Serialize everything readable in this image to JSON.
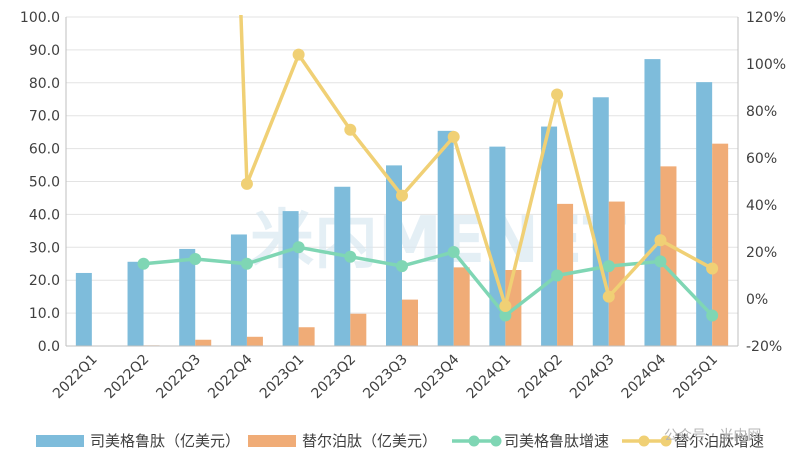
{
  "chart_data": {
    "type": "bar",
    "categories": [
      "2022Q1",
      "2022Q2",
      "2022Q3",
      "2022Q4",
      "2023Q1",
      "2023Q2",
      "2023Q3",
      "2023Q4",
      "2024Q1",
      "2024Q2",
      "2024Q3",
      "2024Q4",
      "2025Q1"
    ],
    "series": [
      {
        "name": "司美格鲁肽（亿美元）",
        "kind": "bar",
        "axis": "left",
        "color": "#7ebcdb",
        "values": [
          22.2,
          25.6,
          29.5,
          33.9,
          41.0,
          48.4,
          54.9,
          65.4,
          60.6,
          66.7,
          75.6,
          87.2,
          80.2
        ]
      },
      {
        "name": "替尔泊肽（亿美元）",
        "kind": "bar",
        "axis": "left",
        "color": "#f0ac77",
        "values": [
          null,
          0.2,
          1.9,
          2.8,
          5.7,
          9.8,
          14.1,
          23.9,
          23.1,
          43.2,
          43.9,
          54.6,
          61.5
        ]
      },
      {
        "name": "司美格鲁肽增速",
        "kind": "line",
        "axis": "right",
        "color": "#7fd6b4",
        "values": [
          null,
          0.15,
          0.17,
          0.15,
          0.22,
          0.18,
          0.14,
          0.2,
          -0.07,
          0.1,
          0.14,
          0.16,
          -0.07
        ]
      },
      {
        "name": "替尔泊肽增速",
        "kind": "line",
        "axis": "right",
        "color": "#f0d075",
        "values": [
          null,
          null,
          null,
          0.49,
          1.04,
          0.72,
          0.44,
          0.69,
          -0.03,
          0.87,
          0.01,
          0.25,
          0.13
        ]
      }
    ],
    "off_scale_note": "替尔泊肽增速 2022Q3→2022Q4 line segment rises beyond the 120% axis top",
    "y_left": {
      "min": 0,
      "max": 100,
      "step": 10,
      "ticks": [
        "0.0",
        "10.0",
        "20.0",
        "30.0",
        "40.0",
        "50.0",
        "60.0",
        "70.0",
        "80.0",
        "90.0",
        "100.0"
      ]
    },
    "y_right": {
      "min": -0.2,
      "max": 1.2,
      "step": 0.2,
      "ticks": [
        "-20%",
        "0%",
        "20%",
        "40%",
        "60%",
        "80%",
        "100%",
        "120%"
      ]
    },
    "grid": true,
    "legend_position": "bottom"
  },
  "watermark": {
    "main": "米内MENET",
    "corner": "公众号 · 米内网"
  }
}
